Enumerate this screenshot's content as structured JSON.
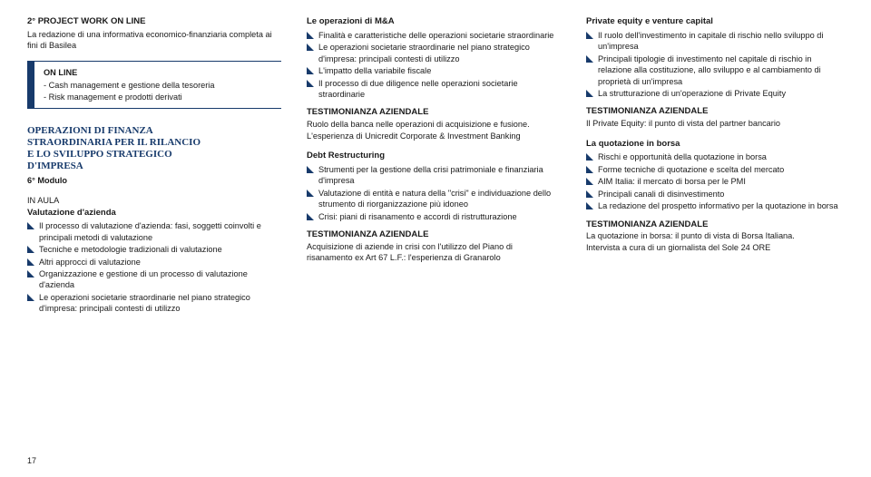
{
  "col1": {
    "project_title": "2° PROJECT WORK ON LINE",
    "project_desc": "La redazione di una informativa economico-finanziaria completa ai fini di Basilea",
    "online": {
      "title": "ON LINE",
      "line1": "- Cash management e gestione della tesoreria",
      "line2": "- Risk management e prodotti derivati"
    },
    "section_title_l1": "OPERAZIONI DI FINANZA",
    "section_title_l2": "STRAORDINARIA PER IL RILANCIO",
    "section_title_l3": "E LO SVILUPPO STRATEGICO",
    "section_title_l4": "D'IMPRESA",
    "module": "6° Modulo",
    "in_aula": "IN AULA",
    "valutazione_head": "Valutazione d'azienda",
    "bullets": [
      "Il processo di valutazione d'azienda: fasi, soggetti coinvolti e principali metodi di valutazione",
      "Tecniche e metodologie tradizionali di valutazione",
      "Altri approcci di valutazione",
      "Organizzazione e gestione di un processo di valutazione d'azienda",
      "Le operazioni societarie straordinarie nel piano strategico d'impresa: principali contesti di utilizzo"
    ]
  },
  "col2": {
    "ma_head": "Le operazioni di M&A",
    "ma_bullets": [
      "Finalità e caratteristiche delle operazioni societarie straordinarie",
      "Le operazioni societarie straordinarie nel piano strategico d'impresa: principali contesti di utilizzo",
      "L'impatto della variabile fiscale",
      "Il processo di due diligence nelle operazioni societarie straordinarie"
    ],
    "testi1_title": "TESTIMONIANZA AZIENDALE",
    "testi1_body": "Ruolo della banca nelle operazioni di acquisizione e fusione. L'esperienza di Unicredit Corporate & Investment Banking",
    "debt_head": "Debt Restructuring",
    "debt_bullets": [
      "Strumenti per la gestione della crisi patrimoniale e finanziaria d'impresa",
      "Valutazione di entità e natura della \"crisi\" e individuazione dello strumento di riorganizzazione più idoneo",
      "Crisi: piani di risanamento e accordi di ristrutturazione"
    ],
    "testi2_title": "TESTIMONIANZA AZIENDALE",
    "testi2_body": "Acquisizione di aziende in crisi con l'utilizzo del Piano di risanamento ex Art 67 L.F.: l'esperienza di Granarolo"
  },
  "col3": {
    "pe_head": "Private equity e venture capital",
    "pe_bullets": [
      "Il ruolo dell'investimento in capitale di rischio nello sviluppo di un'impresa",
      "Principali tipologie di investimento nel capitale di rischio in relazione alla costituzione, allo sviluppo e al cambiamento di proprietà di un'impresa",
      "La strutturazione di un'operazione di Private Equity"
    ],
    "testi1_title": "TESTIMONIANZA AZIENDALE",
    "testi1_body": "Il Private Equity: il punto di vista del partner bancario",
    "quot_head": "La quotazione in borsa",
    "quot_bullets": [
      "Rischi e opportunità della quotazione in borsa",
      "Forme tecniche di quotazione e scelta del mercato",
      "AIM Italia: il mercato di borsa per le PMI",
      "Principali canali di disinvestimento",
      "La redazione del prospetto informativo per la quotazione in borsa"
    ],
    "testi2_title": "TESTIMONIANZA AZIENDALE",
    "testi2_body1": "La quotazione in borsa: il punto di vista di Borsa Italiana.",
    "testi2_body2": "Intervista a cura di un giornalista del Sole 24 ORE"
  },
  "page_number": "17"
}
